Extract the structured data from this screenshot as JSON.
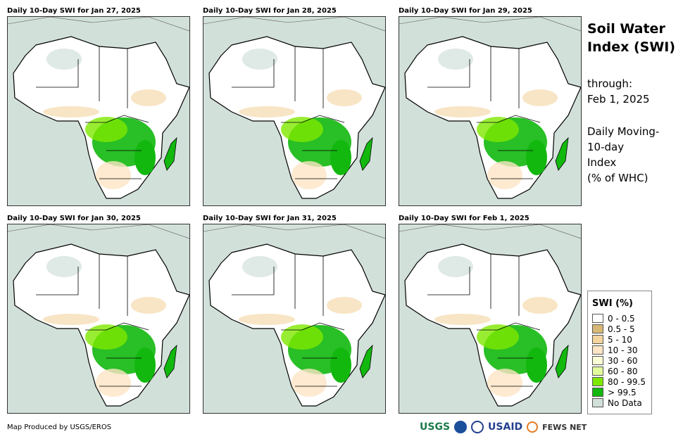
{
  "panels": [
    {
      "title": "Daily 10-Day SWI for Jan 27, 2025"
    },
    {
      "title": "Daily 10-Day SWI for Jan 28, 2025"
    },
    {
      "title": "Daily 10-Day SWI for Jan 29, 2025"
    },
    {
      "title": "Daily 10-Day SWI for Jan 30, 2025"
    },
    {
      "title": "Daily 10-Day SWI for Jan 31, 2025"
    },
    {
      "title": "Daily 10-Day SWI for Feb 1, 2025"
    }
  ],
  "side": {
    "title_line1": "Soil Water",
    "title_line2": "Index (SWI)",
    "through": "through:",
    "date": "Feb 1, 2025",
    "desc1": "Daily Moving-",
    "desc2": "10-day",
    "desc3": "Index",
    "desc4": "(% of WHC)"
  },
  "legend": {
    "title": "SWI (%)",
    "items": [
      {
        "label": "0 - 0.5",
        "color": "#ffffff"
      },
      {
        "label": "0.5 - 5",
        "color": "#d9b877"
      },
      {
        "label": "5 - 10",
        "color": "#f3d49e"
      },
      {
        "label": "10 - 30",
        "color": "#fde5c5"
      },
      {
        "label": "30 - 60",
        "color": "#fbfdd6"
      },
      {
        "label": "60 - 80",
        "color": "#e3fd9c"
      },
      {
        "label": "80 - 99.5",
        "color": "#7ee800"
      },
      {
        "label": "> 99.5",
        "color": "#12b80e"
      },
      {
        "label": "No Data",
        "color": "#d2e0da"
      }
    ]
  },
  "credit": "Map Produced by USGS/EROS",
  "logos": {
    "usgs": "USGS",
    "usaid": "USAID",
    "fews": "FEWS NET"
  }
}
